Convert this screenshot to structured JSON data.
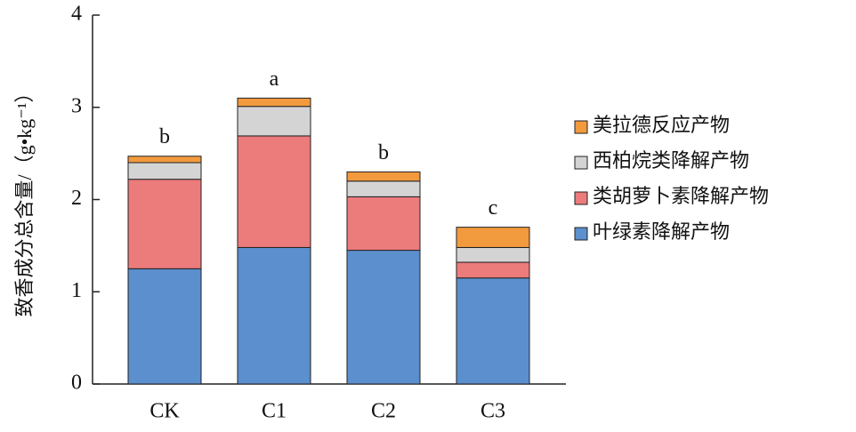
{
  "chart_data": {
    "type": "stacked-bar",
    "ylabel": "致香成分总含量/（g•kg⁻¹）",
    "categories": [
      "CK",
      "C1",
      "C2",
      "C3"
    ],
    "annotations": [
      "b",
      "a",
      "b",
      "c"
    ],
    "series": [
      {
        "name": "叶绿素降解产物",
        "color": "#5b8fce",
        "values": [
          1.25,
          1.48,
          1.45,
          1.15
        ]
      },
      {
        "name": "类胡萝卜素降解产物",
        "color": "#ec7b7c",
        "values": [
          0.97,
          1.21,
          0.58,
          0.17
        ]
      },
      {
        "name": "西柏烷类降解产物",
        "color": "#d4d4d4",
        "values": [
          0.18,
          0.32,
          0.17,
          0.16
        ]
      },
      {
        "name": "美拉德反应产物",
        "color": "#f29a3e",
        "values": [
          0.07,
          0.09,
          0.1,
          0.22
        ]
      }
    ],
    "ylim": [
      0,
      4
    ],
    "yticks": [
      0,
      1,
      2,
      3,
      4
    ]
  }
}
